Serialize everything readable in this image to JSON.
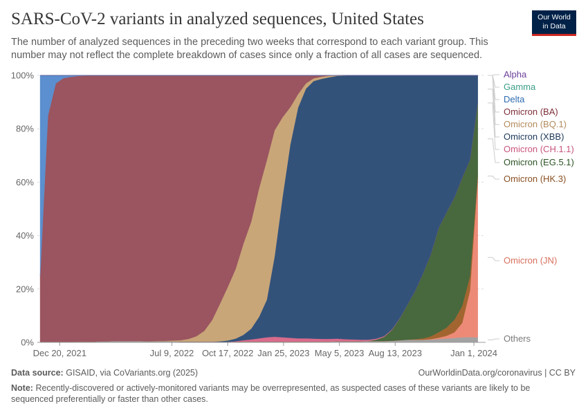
{
  "header": {
    "title": "SARS-CoV-2 variants in analyzed sequences, United States",
    "subtitle": "The number of analyzed sequences in the preceding two weeks that correspond to each variant group. This number may not reflect the complete breakdown of cases since only a fraction of all cases are sequenced."
  },
  "logo": {
    "line1": "Our World",
    "line2": "in Data",
    "bg_color": "#002147",
    "accent_color": "#ce261e"
  },
  "footer": {
    "source_label": "Data source:",
    "source_text": "GISAID, via CoVariants.org (2025)",
    "url_text": "OurWorldinData.org/coronavirus | CC BY",
    "note_label": "Note:",
    "note_text": "Recently-discovered or actively-monitored variants may be overrepresented, as suspected cases of these variants are likely to be sequenced preferentially or faster than other cases."
  },
  "chart_data": {
    "type": "area",
    "stacked": true,
    "x_ticks": [
      "Dec 20, 2021",
      "Jul 9, 2022",
      "Oct 17, 2022",
      "Jan 25, 2023",
      "May 5, 2023",
      "Aug 13, 2023",
      "Jan 1, 2024"
    ],
    "y_ticks": [
      "0%",
      "20%",
      "40%",
      "60%",
      "80%",
      "100%"
    ],
    "ylim": [
      0,
      100
    ],
    "grid": true,
    "legend_position": "right",
    "x": [
      "2021-11-15",
      "2021-11-29",
      "2021-12-13",
      "2021-12-27",
      "2022-01-10",
      "2022-01-24",
      "2022-02-07",
      "2022-02-21",
      "2022-03-07",
      "2022-04-04",
      "2022-05-02",
      "2022-05-30",
      "2022-06-27",
      "2022-07-25",
      "2022-08-08",
      "2022-08-22",
      "2022-09-05",
      "2022-09-19",
      "2022-10-03",
      "2022-10-17",
      "2022-10-31",
      "2022-11-14",
      "2022-11-28",
      "2022-12-12",
      "2022-12-26",
      "2023-01-09",
      "2023-01-23",
      "2023-02-06",
      "2023-02-20",
      "2023-03-06",
      "2023-03-20",
      "2023-04-03",
      "2023-04-17",
      "2023-05-01",
      "2023-05-15",
      "2023-05-29",
      "2023-06-12",
      "2023-06-26",
      "2023-07-10",
      "2023-07-24",
      "2023-08-07",
      "2023-08-21",
      "2023-09-04",
      "2023-09-18",
      "2023-10-02",
      "2023-10-16",
      "2023-10-30",
      "2023-11-13",
      "2023-11-27",
      "2023-12-11",
      "2023-12-25",
      "2024-01-08"
    ],
    "series": [
      {
        "name": "Others",
        "color": "#a2a2a2",
        "values": [
          0.2,
          0.2,
          0.2,
          0.2,
          0.2,
          0.3,
          0.3,
          0.3,
          0.4,
          0.5,
          0.5,
          0.4,
          0.4,
          0.3,
          0.3,
          0.3,
          0.3,
          0.3,
          0.2,
          0.2,
          0.2,
          0.3,
          0.3,
          0.3,
          0.3,
          0.3,
          0.3,
          0.3,
          0.3,
          0.3,
          0.3,
          0.3,
          0.3,
          0.4,
          0.4,
          0.4,
          0.4,
          0.5,
          0.5,
          0.5,
          0.6,
          0.8,
          1.0,
          1.0,
          1.0,
          1.0,
          1.2,
          1.4,
          1.6,
          1.8,
          1.8,
          1.8
        ]
      },
      {
        "name": "Omicron (JN)",
        "color": "#ec8a77",
        "values": [
          0,
          0,
          0,
          0,
          0,
          0,
          0,
          0,
          0,
          0,
          0,
          0,
          0,
          0,
          0,
          0,
          0,
          0,
          0,
          0,
          0,
          0,
          0,
          0,
          0,
          0,
          0,
          0,
          0,
          0,
          0,
          0,
          0,
          0,
          0,
          0,
          0,
          0,
          0,
          0,
          0,
          0,
          0,
          0,
          0,
          0.2,
          0.5,
          1.0,
          2.0,
          5.0,
          16.0,
          58.0
        ]
      },
      {
        "name": "Omicron (HK.3)",
        "color": "#a2652f",
        "values": [
          0,
          0,
          0,
          0,
          0,
          0,
          0,
          0,
          0,
          0,
          0,
          0,
          0,
          0,
          0,
          0,
          0,
          0,
          0,
          0,
          0,
          0,
          0,
          0,
          0,
          0,
          0,
          0,
          0,
          0,
          0,
          0,
          0,
          0,
          0,
          0,
          0,
          0,
          0,
          0,
          0,
          0,
          0,
          0.2,
          0.5,
          1.0,
          2.0,
          3.0,
          4.5,
          6.0,
          5.0,
          1.0
        ]
      },
      {
        "name": "Omicron (EG.5.1)",
        "color": "#48683e",
        "values": [
          0,
          0,
          0,
          0,
          0,
          0,
          0,
          0,
          0,
          0,
          0,
          0,
          0,
          0,
          0,
          0,
          0,
          0,
          0,
          0,
          0,
          0,
          0,
          0,
          0,
          0,
          0,
          0,
          0,
          0,
          0,
          0,
          0,
          0,
          0,
          0,
          0,
          0,
          0.5,
          1.5,
          4.0,
          8.0,
          13.0,
          18.0,
          24.0,
          30.0,
          38.0,
          42.0,
          44.0,
          45.0,
          40.0,
          26.0
        ]
      },
      {
        "name": "Omicron (CH.1.1)",
        "color": "#d96b8c",
        "values": [
          0,
          0,
          0,
          0,
          0,
          0,
          0,
          0,
          0,
          0,
          0,
          0,
          0,
          0,
          0,
          0,
          0,
          0,
          0,
          0,
          0.2,
          0.5,
          0.8,
          1.2,
          1.6,
          1.8,
          1.6,
          1.4,
          1.2,
          1.2,
          1.1,
          1.0,
          1.0,
          1.0,
          0.8,
          0.7,
          0.6,
          0.5,
          0.4,
          0.3,
          0.2,
          0.1,
          0,
          0,
          0,
          0,
          0,
          0,
          0,
          0,
          0,
          0
        ]
      },
      {
        "name": "Omicron (XBB)",
        "color": "#33527a",
        "values": [
          0,
          0,
          0,
          0,
          0,
          0,
          0,
          0,
          0,
          0,
          0,
          0,
          0,
          0,
          0,
          0,
          0,
          0,
          0.2,
          0.5,
          1.0,
          2.0,
          4.0,
          8.0,
          14.0,
          30.0,
          52.0,
          72.0,
          86.0,
          93.0,
          96.0,
          97.0,
          98.0,
          98.4,
          98.6,
          98.7,
          98.8,
          98.8,
          98.4,
          97.2,
          94.6,
          90.4,
          85.0,
          80.0,
          73.0,
          65.0,
          55.5,
          50.0,
          44.0,
          36.0,
          29.0,
          10.0
        ]
      },
      {
        "name": "Omicron (BQ.1)",
        "color": "#c9a678",
        "values": [
          0,
          0,
          0,
          0,
          0,
          0,
          0,
          0,
          0,
          0,
          0,
          0.1,
          0.2,
          0.5,
          1.0,
          2.0,
          4.0,
          8.0,
          14.0,
          20.0,
          26.0,
          34.0,
          40.0,
          48.0,
          52.0,
          47.0,
          30.0,
          14.0,
          5.0,
          2.0,
          1.0,
          0.8,
          0.6,
          0.2,
          0.1,
          0,
          0,
          0,
          0,
          0,
          0,
          0,
          0,
          0,
          0,
          0,
          0,
          0,
          0,
          0,
          0,
          0
        ]
      },
      {
        "name": "Omicron (BA)",
        "color": "#9a5560",
        "values": [
          24.8,
          84.6,
          96.7,
          98.8,
          99.3,
          99.5,
          99.6,
          99.6,
          99.5,
          99.4,
          99.4,
          99.4,
          99.3,
          99.1,
          98.6,
          97.6,
          95.6,
          91.6,
          85.5,
          79.2,
          72.5,
          63.0,
          54.7,
          42.3,
          31.6,
          20.4,
          15.6,
          11.8,
          6.9,
          2.9,
          1.0,
          0.4,
          0.1,
          0,
          0,
          0,
          0,
          0,
          0,
          0,
          0,
          0,
          0,
          0,
          0,
          0,
          0,
          0,
          0,
          0,
          0,
          0
        ]
      },
      {
        "name": "Delta",
        "color": "#5b8fcf",
        "values": [
          75,
          15,
          3,
          1,
          0.5,
          0.2,
          0.1,
          0.1,
          0.1,
          0.1,
          0.1,
          0.1,
          0.1,
          0.1,
          0.1,
          0.1,
          0.1,
          0.1,
          0.1,
          0.1,
          0.1,
          0.1,
          0.1,
          0.1,
          0.1,
          0.1,
          0.1,
          0.1,
          0.1,
          0.1,
          0.1,
          0.1,
          0,
          0,
          0,
          0,
          0,
          0,
          0,
          0,
          0,
          0,
          0,
          0,
          0,
          0,
          0,
          0,
          0,
          0,
          0,
          0
        ]
      },
      {
        "name": "Gamma",
        "color": "#3a9e88",
        "values": [
          0,
          0,
          0,
          0,
          0,
          0,
          0,
          0,
          0,
          0,
          0,
          0,
          0,
          0,
          0,
          0,
          0,
          0,
          0,
          0,
          0,
          0,
          0,
          0,
          0,
          0,
          0,
          0,
          0,
          0,
          0,
          0,
          0,
          0,
          0,
          0,
          0,
          0,
          0,
          0,
          0,
          0,
          0,
          0,
          0,
          0,
          0,
          0,
          0,
          0,
          0,
          0
        ]
      },
      {
        "name": "Alpha",
        "color": "#6b3f99",
        "values": [
          0,
          0,
          0,
          0,
          0,
          0,
          0,
          0,
          0,
          0,
          0,
          0,
          0,
          0,
          0,
          0,
          0,
          0,
          0,
          0,
          0,
          0,
          0,
          0,
          0,
          0,
          0,
          0,
          0,
          0,
          0,
          0,
          0,
          0,
          0,
          0,
          0,
          0,
          0,
          0,
          0,
          0,
          0,
          0,
          0,
          0,
          0,
          0,
          0,
          0,
          0,
          0
        ]
      }
    ],
    "legend": [
      {
        "name": "Alpha",
        "color": "#6b3f99"
      },
      {
        "name": "Gamma",
        "color": "#3a9e88"
      },
      {
        "name": "Delta",
        "color": "#2d6ab0"
      },
      {
        "name": "Omicron (BA)",
        "color": "#7e2e38"
      },
      {
        "name": "Omicron (BQ.1)",
        "color": "#b28a5c"
      },
      {
        "name": "Omicron (XBB)",
        "color": "#1b3759"
      },
      {
        "name": "Omicron (CH.1.1)",
        "color": "#c9557a"
      },
      {
        "name": "Omicron (EG.5.1)",
        "color": "#2c5424"
      },
      {
        "name": "Omicron (HK.3)",
        "color": "#8a4f22"
      },
      {
        "name": "Omicron (JN)",
        "color": "#d8705e"
      },
      {
        "name": "Others",
        "color": "#7a7a7a"
      }
    ]
  }
}
